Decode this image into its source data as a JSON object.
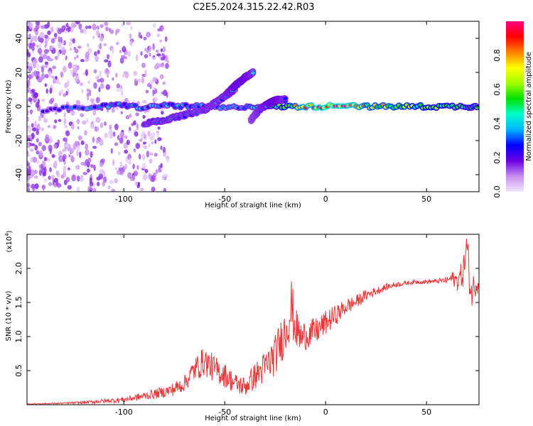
{
  "title": "C2E5.2024.315.22.42.R03",
  "chart_data": [
    {
      "type": "heatmap",
      "xlabel": "Height of straight line (km)",
      "ylabel": "Frequency (Hz)",
      "xlim": [
        -148,
        76
      ],
      "ylim": [
        -50,
        50
      ],
      "xticks": [
        -100,
        -50,
        0,
        50
      ],
      "xtick_labels": [
        "-100",
        "-50",
        "0",
        "50"
      ],
      "yticks": [
        -40,
        -20,
        0,
        20,
        40
      ],
      "ytick_labels": [
        "-40",
        "-20",
        "0",
        "20",
        "40"
      ],
      "colorbar": {
        "label": "Normalized spectral amplitude",
        "range": [
          0,
          1
        ],
        "ticks": [
          0.0,
          0.2,
          0.4,
          0.6,
          0.8
        ],
        "tick_labels": [
          "0.0",
          "0.2",
          "0.4",
          "0.6",
          "0.8"
        ],
        "colors": [
          "#f2e6fa",
          "#c88cf0",
          "#6a00e0",
          "#0000ff",
          "#00b4ff",
          "#00ffcc",
          "#00e000",
          "#a0ff00",
          "#ffff00",
          "#ff8000",
          "#ff0000",
          "#ff0080"
        ]
      },
      "ridges": [
        {
          "x": [
            -140,
            -125,
            -110,
            -100,
            -90,
            -80,
            -70,
            -60,
            -50,
            -40,
            -30,
            -20,
            -10,
            0,
            10,
            20,
            30,
            40,
            50,
            60,
            70,
            75
          ],
          "freq": [
            -2,
            -1,
            0,
            1,
            -1,
            1,
            0,
            0,
            -1,
            0,
            0,
            0,
            0,
            0,
            1,
            0,
            0,
            0,
            0,
            0,
            0,
            0
          ],
          "amplitude": [
            0.25,
            0.3,
            0.35,
            0.35,
            0.35,
            0.35,
            0.35,
            0.35,
            0.35,
            0.35,
            0.4,
            0.6,
            0.8,
            0.95,
            0.9,
            0.7,
            0.7,
            0.65,
            0.6,
            0.55,
            0.5,
            0.45
          ]
        },
        {
          "x": [
            -90,
            -80,
            -70,
            -60,
            -55,
            -50,
            -45
          ],
          "freq": [
            -10,
            -8,
            -5,
            -2,
            2,
            6,
            10
          ],
          "amplitude": [
            0.35,
            0.35,
            0.35,
            0.35,
            0.35,
            0.35,
            0.35
          ]
        },
        {
          "x": [
            -50,
            -45,
            -40,
            -36
          ],
          "freq": [
            6,
            12,
            17,
            20
          ],
          "amplitude": [
            0.35,
            0.4,
            0.4,
            0.35
          ]
        },
        {
          "x": [
            -37,
            -33,
            -28,
            -24,
            -20
          ],
          "freq": [
            -8,
            -2,
            2,
            4,
            4
          ],
          "amplitude": [
            0.3,
            0.35,
            0.4,
            0.4,
            0.35
          ]
        }
      ]
    },
    {
      "type": "line",
      "xlabel": "Height of straight line (km)",
      "ylabel": "SNR (10 * v/v)",
      "scale_label": "(x10",
      "scale_exponent": "4",
      "xlim": [
        -148,
        76
      ],
      "ylim": [
        0,
        2.5
      ],
      "xticks": [
        -100,
        -50,
        0,
        50
      ],
      "xtick_labels": [
        "-100",
        "-50",
        "0",
        "50"
      ],
      "yticks": [
        0.5,
        1.0,
        1.5,
        2.0
      ],
      "ytick_labels": [
        "0.5",
        "1.0",
        "1.5",
        "2.0"
      ],
      "series": [
        {
          "color": "#e8383a",
          "x": [
            -148,
            -130,
            -120,
            -110,
            -100,
            -90,
            -80,
            -75,
            -70,
            -65,
            -60,
            -55,
            -50,
            -45,
            -40,
            -35,
            -30,
            -25,
            -20,
            -17,
            -15,
            -12,
            -10,
            -5,
            0,
            5,
            10,
            15,
            20,
            25,
            30,
            35,
            40,
            45,
            50,
            55,
            60,
            63,
            65,
            68,
            70,
            72,
            74,
            76
          ],
          "values": [
            0.01,
            0.02,
            0.03,
            0.05,
            0.07,
            0.12,
            0.18,
            0.22,
            0.3,
            0.5,
            0.62,
            0.5,
            0.42,
            0.3,
            0.25,
            0.4,
            0.52,
            0.7,
            1.05,
            1.4,
            1.1,
            0.95,
            1.0,
            1.05,
            1.18,
            1.3,
            1.42,
            1.5,
            1.6,
            1.66,
            1.72,
            1.76,
            1.78,
            1.8,
            1.8,
            1.81,
            1.82,
            1.85,
            1.8,
            1.9,
            2.3,
            1.6,
            1.75,
            1.8
          ],
          "noise": [
            0.005,
            0.01,
            0.02,
            0.03,
            0.04,
            0.06,
            0.08,
            0.1,
            0.12,
            0.18,
            0.22,
            0.2,
            0.18,
            0.15,
            0.15,
            0.2,
            0.25,
            0.3,
            0.35,
            0.45,
            0.3,
            0.25,
            0.22,
            0.2,
            0.18,
            0.15,
            0.12,
            0.1,
            0.08,
            0.06,
            0.05,
            0.04,
            0.03,
            0.03,
            0.03,
            0.03,
            0.05,
            0.1,
            0.15,
            0.2,
            0.3,
            0.25,
            0.2,
            0.15
          ]
        }
      ]
    }
  ]
}
